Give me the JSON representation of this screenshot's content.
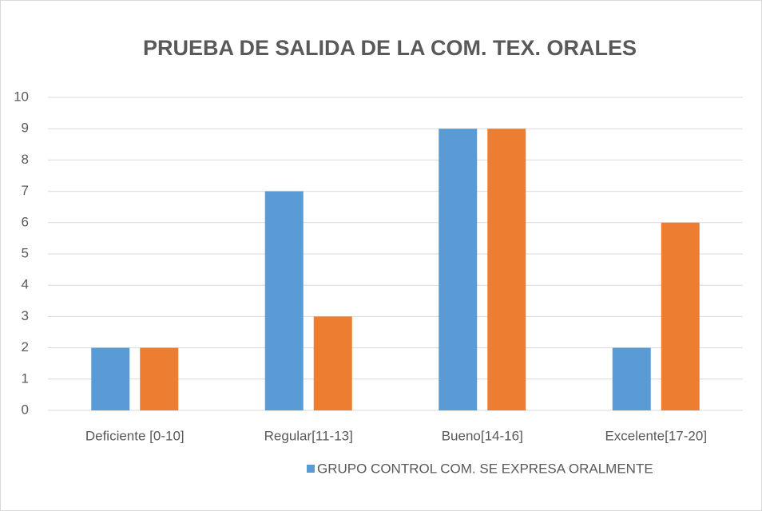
{
  "chart_data": {
    "type": "bar",
    "title": "PRUEBA DE SALIDA DE LA COM. TEX. ORALES",
    "categories": [
      "Deficiente [0-10]",
      "Regular[11-13]",
      "Bueno[14-16]",
      "Excelente[17-20]"
    ],
    "series": [
      {
        "name": "GRUPO CONTROL COM. SE EXPRESA ORALMENTE",
        "color": "#5b9bd5",
        "values": [
          2,
          7,
          9,
          2
        ]
      },
      {
        "color": "#ed7d31",
        "values": [
          2,
          3,
          9,
          6
        ]
      }
    ],
    "ylim": [
      0,
      10
    ],
    "yticks": [
      0,
      1,
      2,
      3,
      4,
      5,
      6,
      7,
      8,
      9,
      10
    ],
    "grid": true,
    "legend": "bottom"
  }
}
